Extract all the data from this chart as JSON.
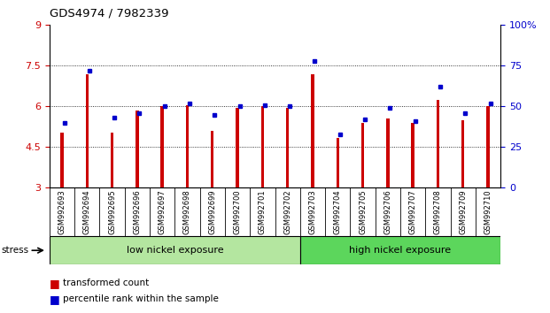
{
  "title": "GDS4974 / 7982339",
  "samples": [
    "GSM992693",
    "GSM992694",
    "GSM992695",
    "GSM992696",
    "GSM992697",
    "GSM992698",
    "GSM992699",
    "GSM992700",
    "GSM992701",
    "GSM992702",
    "GSM992703",
    "GSM992704",
    "GSM992705",
    "GSM992706",
    "GSM992707",
    "GSM992708",
    "GSM992709",
    "GSM992710"
  ],
  "red_values": [
    5.05,
    7.2,
    5.05,
    5.85,
    6.0,
    6.05,
    5.1,
    5.95,
    6.0,
    5.95,
    7.2,
    4.85,
    5.4,
    5.55,
    5.4,
    6.25,
    5.5,
    6.0
  ],
  "blue_values": [
    40,
    72,
    43,
    46,
    50,
    52,
    45,
    50,
    51,
    50,
    78,
    33,
    42,
    49,
    41,
    62,
    46,
    52
  ],
  "y_min": 3,
  "y_max": 9,
  "y_ticks": [
    3,
    4.5,
    6,
    7.5,
    9
  ],
  "y2_ticks": [
    0,
    25,
    50,
    75,
    100
  ],
  "bar_color": "#cc0000",
  "dot_color": "#0000cc",
  "group1_label": "low nickel exposure",
  "group2_label": "high nickel exposure",
  "group1_count": 10,
  "group2_count": 8,
  "stress_label": "stress",
  "legend1": "transformed count",
  "legend2": "percentile rank within the sample",
  "background_color": "#ffffff",
  "tick_area_color": "#c8c8c8",
  "group1_bg": "#b4e6a0",
  "group2_bg": "#5cd65c"
}
